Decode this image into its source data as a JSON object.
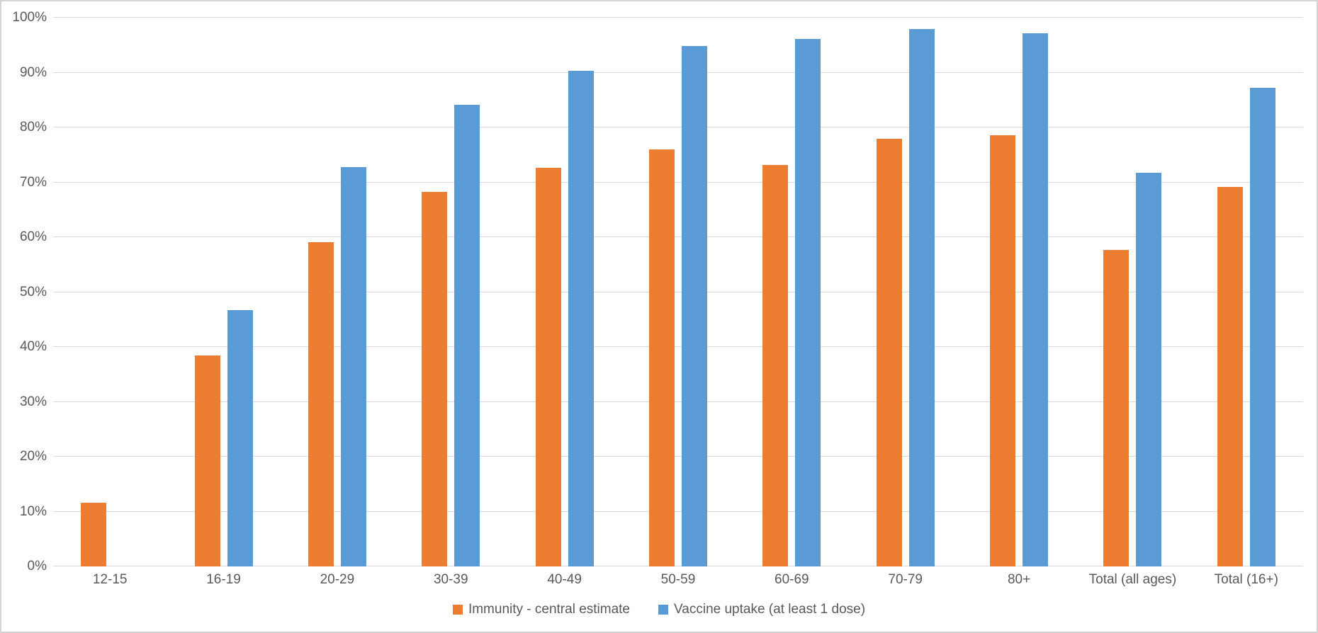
{
  "chart_data": {
    "type": "bar",
    "title": "",
    "xlabel": "",
    "ylabel": "",
    "categories": [
      "12-15",
      "16-19",
      "20-29",
      "30-39",
      "40-49",
      "50-59",
      "60-69",
      "70-79",
      "80+",
      "Total (all ages)",
      "Total (16+)"
    ],
    "series": [
      {
        "name": "Immunity - central estimate",
        "color": "#ED7D31",
        "values": [
          11.6,
          38.5,
          59.1,
          68.3,
          72.6,
          76.0,
          73.1,
          78.0,
          78.6,
          57.7,
          69.2
        ]
      },
      {
        "name": "Vaccine uptake (at least 1 dose)",
        "color": "#5B9BD5",
        "values": [
          0,
          46.7,
          72.8,
          84.1,
          90.3,
          94.9,
          96.1,
          97.9,
          97.2,
          71.8,
          87.2
        ]
      }
    ],
    "ylim": [
      0,
      100
    ],
    "y_tick_step": 10,
    "y_tick_labels": [
      "0%",
      "10%",
      "20%",
      "30%",
      "40%",
      "50%",
      "60%",
      "70%",
      "80%",
      "90%",
      "100%"
    ],
    "grid": true,
    "legend_position": "bottom"
  },
  "colors": {
    "gridline": "#D9D9D9",
    "axis_text": "#595959",
    "frame_border": "#D3D3D3",
    "background": "#FFFFFF"
  }
}
